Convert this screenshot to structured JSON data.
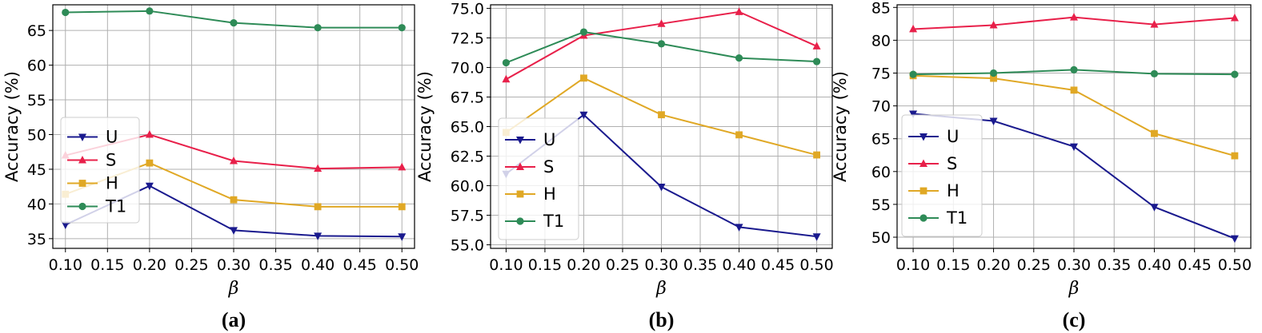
{
  "colors": {
    "U": "#1a1a8e",
    "S": "#e8204a",
    "H": "#e0a825",
    "T1": "#2e8b57",
    "grid": "#b0b0b0"
  },
  "markers": {
    "U": "triangle-down",
    "S": "triangle-up",
    "H": "square",
    "T1": "circle"
  },
  "chart_data": [
    {
      "type": "line",
      "panel_label": "(a)",
      "xlabel": "β",
      "ylabel": "Accuracy (%)",
      "x": [
        0.1,
        0.2,
        0.3,
        0.4,
        0.5
      ],
      "xticks": [
        "0.10",
        "0.15",
        "0.20",
        "0.25",
        "0.30",
        "0.35",
        "0.40",
        "0.45",
        "0.50"
      ],
      "xlim": [
        0.085,
        0.515
      ],
      "yticks": [
        "35",
        "40",
        "45",
        "50",
        "55",
        "60",
        "65"
      ],
      "ylim": [
        33.6,
        68.7
      ],
      "grid": true,
      "legend_position": "lower-left",
      "series": [
        {
          "name": "U",
          "values": [
            37.0,
            42.6,
            36.2,
            35.4,
            35.3
          ]
        },
        {
          "name": "S",
          "values": [
            47.0,
            50.0,
            46.2,
            45.1,
            45.3
          ]
        },
        {
          "name": "H",
          "values": [
            41.4,
            45.9,
            40.6,
            39.6,
            39.6
          ]
        },
        {
          "name": "T1",
          "values": [
            67.6,
            67.8,
            66.1,
            65.4,
            65.4
          ]
        }
      ]
    },
    {
      "type": "line",
      "panel_label": "(b)",
      "xlabel": "β",
      "ylabel": "Accuracy (%)",
      "x": [
        0.1,
        0.2,
        0.3,
        0.4,
        0.5
      ],
      "xticks": [
        "0.10",
        "0.15",
        "0.20",
        "0.25",
        "0.30",
        "0.35",
        "0.40",
        "0.45",
        "0.50"
      ],
      "xlim": [
        0.08,
        0.52
      ],
      "yticks": [
        "55.0",
        "57.5",
        "60.0",
        "62.5",
        "65.0",
        "67.5",
        "70.0",
        "72.5",
        "75.0"
      ],
      "ylim": [
        54.7,
        75.3
      ],
      "grid": true,
      "legend_position": "lower-left",
      "series": [
        {
          "name": "U",
          "values": [
            61.0,
            66.0,
            59.9,
            56.5,
            55.7
          ]
        },
        {
          "name": "S",
          "values": [
            69.0,
            72.7,
            73.7,
            74.7,
            71.8
          ]
        },
        {
          "name": "H",
          "values": [
            64.5,
            69.1,
            66.0,
            64.3,
            62.6
          ]
        },
        {
          "name": "T1",
          "values": [
            70.4,
            73.0,
            72.0,
            70.8,
            70.5
          ]
        }
      ]
    },
    {
      "type": "line",
      "panel_label": "(c)",
      "xlabel": "β",
      "ylabel": "Accuracy (%)",
      "x": [
        0.1,
        0.2,
        0.3,
        0.4,
        0.5
      ],
      "xticks": [
        "0.10",
        "0.15",
        "0.20",
        "0.25",
        "0.30",
        "0.35",
        "0.40",
        "0.45",
        "0.50"
      ],
      "xlim": [
        0.08,
        0.52
      ],
      "yticks": [
        "50",
        "55",
        "60",
        "65",
        "70",
        "75",
        "80",
        "85"
      ],
      "ylim": [
        48.3,
        85.4
      ],
      "grid": true,
      "legend_position": "lower-left",
      "series": [
        {
          "name": "U",
          "values": [
            68.8,
            67.7,
            63.8,
            54.6,
            49.8
          ]
        },
        {
          "name": "S",
          "values": [
            81.7,
            82.3,
            83.5,
            82.4,
            83.4
          ]
        },
        {
          "name": "H",
          "values": [
            74.6,
            74.2,
            72.4,
            65.8,
            62.4
          ]
        },
        {
          "name": "T1",
          "values": [
            74.8,
            75.0,
            75.5,
            74.9,
            74.8
          ]
        }
      ]
    }
  ]
}
